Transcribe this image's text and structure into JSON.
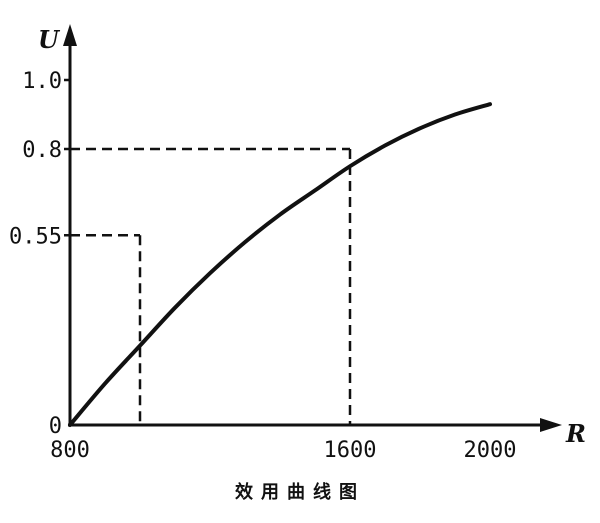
{
  "chart_data": {
    "type": "line",
    "title": "效用曲线图",
    "xlabel": "R",
    "ylabel": "U",
    "xlim": [
      800,
      2000
    ],
    "ylim": [
      0,
      1.0
    ],
    "x_ticks": [
      "800",
      "1600",
      "2000"
    ],
    "y_ticks": [
      "0",
      "0.55",
      "0.8",
      "1.0"
    ],
    "series": [
      {
        "x": [
          800,
          900,
          1000,
          1100,
          1200,
          1300,
          1400,
          1500,
          1600,
          1700,
          1800,
          1900,
          2000
        ],
        "y": [
          0,
          0.12,
          0.23,
          0.34,
          0.44,
          0.53,
          0.61,
          0.68,
          0.75,
          0.81,
          0.86,
          0.9,
          0.93
        ]
      }
    ],
    "reference_points": [
      {
        "x": 1000,
        "y": 0.55
      },
      {
        "x": 1600,
        "y": 0.8
      }
    ],
    "grid": false,
    "line_color": "#111111"
  }
}
